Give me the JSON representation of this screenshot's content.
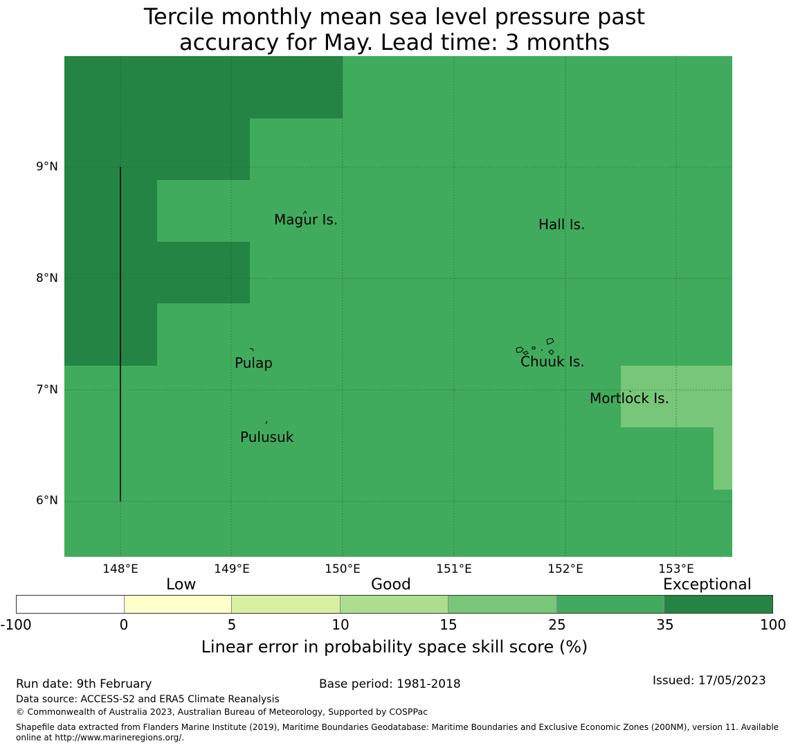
{
  "title": {
    "line1": "Tercile monthly mean sea level pressure past",
    "line2": "accuracy for May. Lead time: 3 months"
  },
  "map": {
    "lat_labels": [
      "9°N",
      "8°N",
      "7°N",
      "6°N"
    ],
    "lon_labels": [
      "148°E",
      "149°E",
      "150°E",
      "151°E",
      "152°E",
      "153°E"
    ],
    "places": [
      "Magur Is.",
      "Hall Is.",
      "Pulap",
      "Chuuk Is.",
      "Mortlock Is.",
      "Pulusuk"
    ],
    "colors": {
      "base": "#41ab5d",
      "exceptional": "#238443",
      "medium": "#78c679"
    }
  },
  "legend": {
    "categories": [
      "Low",
      "Good",
      "Exceptional"
    ],
    "ticks": [
      "-100",
      "0",
      "5",
      "10",
      "15",
      "25",
      "35",
      "100"
    ],
    "colors": [
      "#ffffff",
      "#ffffcc",
      "#d9f0a3",
      "#addd8e",
      "#78c679",
      "#41ab5d",
      "#238443"
    ],
    "title": "Linear error in probability space skill score (%)"
  },
  "footer": {
    "run_date": "Run date: 9th February",
    "base_period": "Base period: 1981-2018",
    "issued": "Issued: 17/05/2023",
    "data_source": "Data source: ACCESS-S2 and ERA5 Climate Reanalysis",
    "copyright": "© Commonwealth of Australia 2023, Australian Bureau of Meteorology, Supported by COSPPac",
    "shapefile": "Shapefile data extracted from Flanders Marine Institute (2019), Maritime Boundaries Geodatabase: Maritime Boundaries and Exclusive Economic Zones (200NM), version 11. Available online at http://www.marineregions.org/."
  }
}
